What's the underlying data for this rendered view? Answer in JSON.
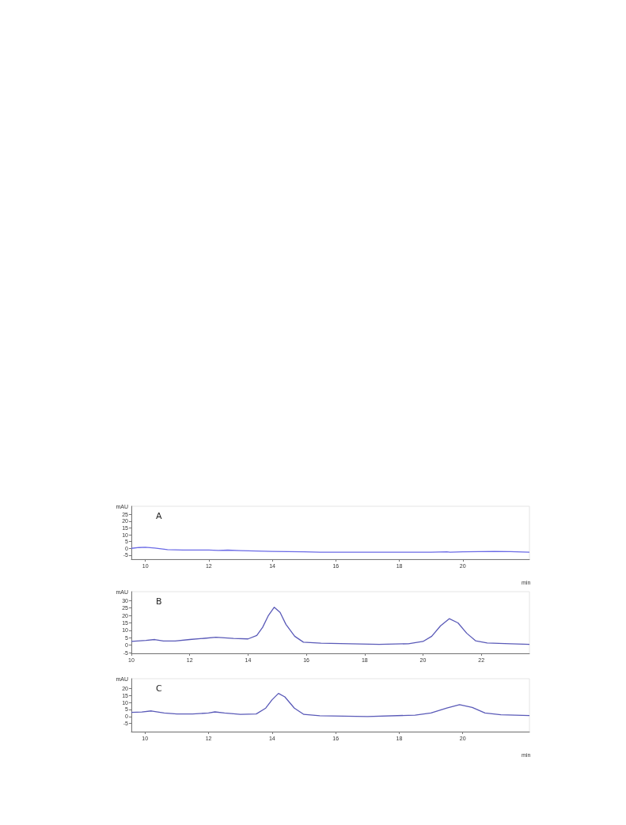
{
  "chart_data": [
    {
      "type": "line",
      "title": "A",
      "xlabel": "min",
      "ylabel": "mAU",
      "color": "#6a6ae6",
      "grid": false,
      "x": [
        9.56,
        9.8,
        10,
        10.3,
        10.7,
        11.2,
        12,
        12.3,
        12.6,
        13,
        13.5,
        14,
        15,
        15.5,
        16,
        17,
        18,
        19,
        19.5,
        19.6,
        20,
        20.5,
        21,
        21.5,
        22.1
      ],
      "values": [
        0,
        0.6,
        0.8,
        0.2,
        -1,
        -1.2,
        -1.2,
        -1.5,
        -1.3,
        -1.7,
        -2,
        -2.3,
        -2.5,
        -2.8,
        -2.8,
        -2.8,
        -2.8,
        -2.8,
        -2.6,
        -2.8,
        -2.6,
        -2.4,
        -2.2,
        -2.4,
        -2.8
      ],
      "xlim": [
        9.56,
        22.1
      ],
      "xticks": [
        10,
        12,
        14,
        16,
        18,
        20
      ],
      "ylim": [
        -8,
        31
      ],
      "yticks": [
        -5,
        0,
        5,
        10,
        15,
        20,
        25
      ]
    },
    {
      "type": "line",
      "title": "B",
      "ylabel": "mAU",
      "color": "#5a5ab8",
      "grid": false,
      "x": [
        10,
        10.5,
        10.8,
        11.1,
        11.5,
        12,
        12.5,
        12.9,
        13.5,
        14,
        14.3,
        14.5,
        14.7,
        14.9,
        15.1,
        15.3,
        15.6,
        15.9,
        16.5,
        17.5,
        18.5,
        19.5,
        20,
        20.3,
        20.6,
        20.9,
        21.2,
        21.5,
        21.8,
        22.2,
        23,
        23.65
      ],
      "values": [
        2.5,
        3.2,
        3.8,
        2.8,
        2.8,
        3.8,
        4.6,
        5.3,
        4.5,
        4.2,
        6.5,
        12,
        20,
        25.5,
        22,
        14,
        6,
        2,
        1.3,
        1,
        0.5,
        1,
        2.5,
        6,
        13,
        17.8,
        15,
        8,
        3,
        1.5,
        1,
        0.5
      ],
      "xlim": [
        10,
        23.65
      ],
      "xticks": [
        10,
        12,
        14,
        16,
        18,
        20,
        22
      ],
      "ylim": [
        -5.5,
        36
      ],
      "yticks": [
        -5,
        0,
        5,
        10,
        15,
        20,
        25,
        30
      ]
    },
    {
      "type": "line",
      "title": "C",
      "xlabel": "min",
      "ylabel": "mAU",
      "color": "#5a5ab8",
      "grid": false,
      "x": [
        9.57,
        9.9,
        10.2,
        10.6,
        11,
        11.5,
        12,
        12.2,
        12.5,
        13,
        13.5,
        13.8,
        14,
        14.2,
        14.4,
        14.7,
        15,
        15.5,
        17,
        18.5,
        19,
        19.5,
        19.9,
        20.3,
        20.7,
        21.2,
        22.1
      ],
      "values": [
        3,
        3.2,
        4,
        2.5,
        1.8,
        1.8,
        2.5,
        3.3,
        2.5,
        1.5,
        1.8,
        6,
        12,
        16.5,
        14,
        6,
        1.5,
        0.5,
        0,
        1,
        2.5,
        6,
        8.5,
        6.5,
        2.5,
        1.3,
        0.7
      ],
      "xlim": [
        9.57,
        22.1
      ],
      "xticks": [
        10,
        12,
        14,
        16,
        18,
        20
      ],
      "ylim": [
        -10.8,
        27
      ],
      "yticks": [
        -5,
        0,
        5,
        10,
        15,
        20
      ]
    }
  ]
}
